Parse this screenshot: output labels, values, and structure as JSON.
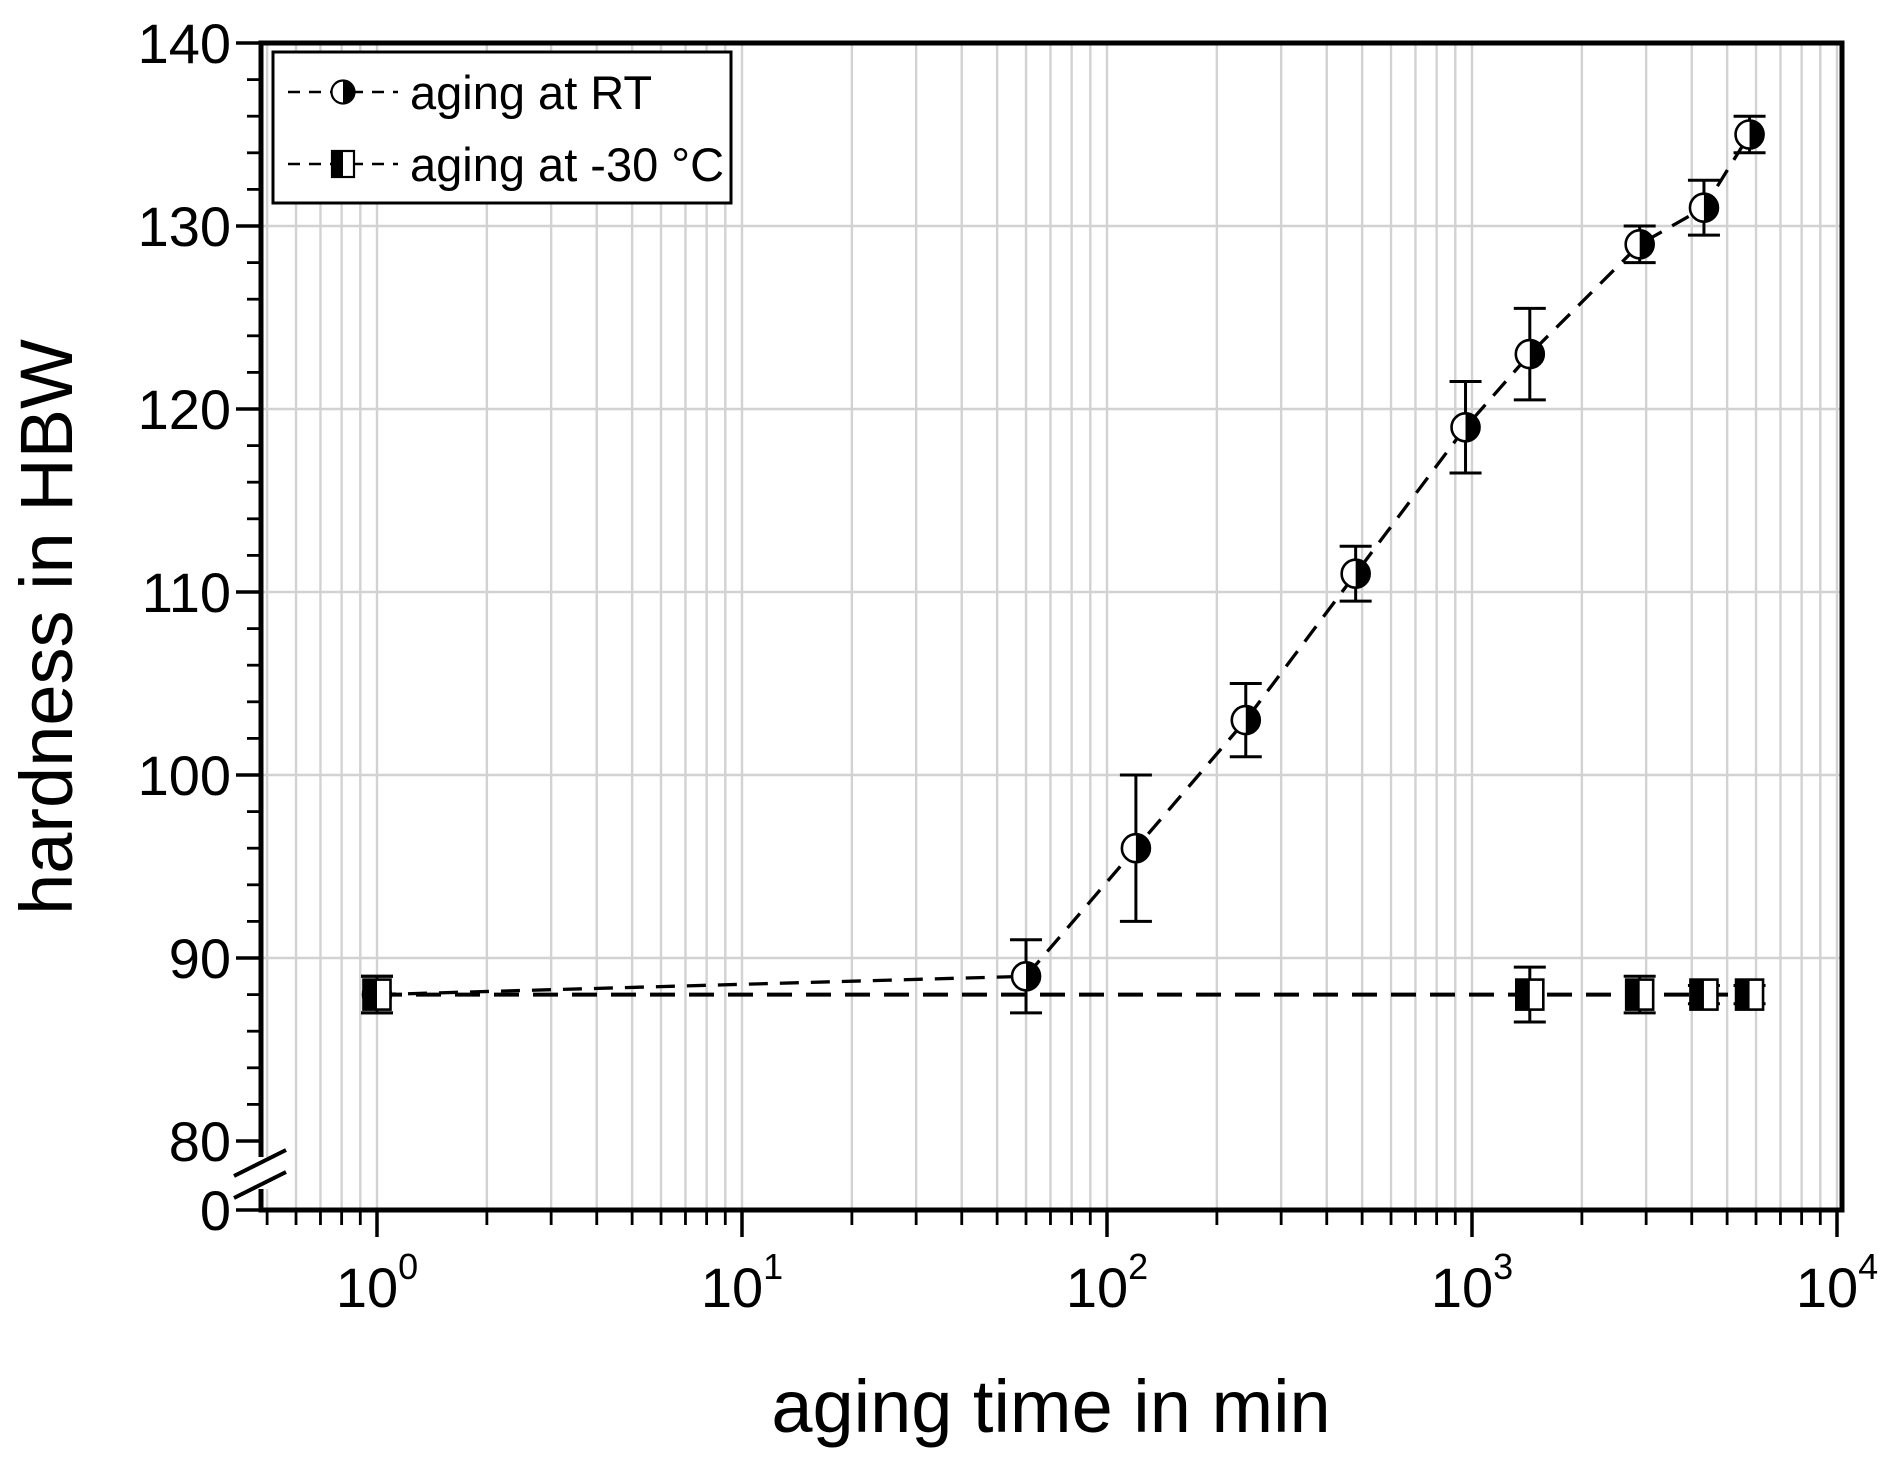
{
  "chart_data": {
    "type": "scatter",
    "title": "",
    "x_axis": {
      "label": "aging time in min",
      "scale": "log10",
      "tick_exponents": [
        0,
        1,
        2,
        3,
        4
      ],
      "tick_labels": [
        "10⁰",
        "10¹",
        "10²",
        "10³",
        "10⁴"
      ],
      "range": [
        0.48,
        10300
      ],
      "minor_ticks": "log 2-9 per decade",
      "gridlines": "vertical at every major and minor log tick"
    },
    "y_axis": {
      "label": "hardness in HBW",
      "scale": "linear with axis break",
      "major_ticks": [
        140,
        130,
        120,
        110,
        100,
        90,
        80
      ],
      "origin_label": "0",
      "minor_step": 2,
      "axis_break_between": [
        80,
        0
      ],
      "range_shown": [
        80,
        140
      ]
    },
    "grid": {
      "color": "#d2d2d2",
      "horizontal_at": [
        90,
        100,
        110,
        120,
        130
      ]
    },
    "legend": {
      "position": "top-left",
      "entries": [
        {
          "label": "aging at RT",
          "marker": "half-filled-circle"
        },
        {
          "label": "aging at -30 °C",
          "marker": "half-filled-square"
        }
      ]
    },
    "series": [
      {
        "name": "aging at RT",
        "marker": "half-filled-circle",
        "line": "dashed",
        "color": "#000000",
        "points": [
          {
            "x": 1,
            "y": 88,
            "err": 1.0
          },
          {
            "x": 60,
            "y": 89,
            "err": 2.0
          },
          {
            "x": 120,
            "y": 96,
            "err": 4.0
          },
          {
            "x": 240,
            "y": 103,
            "err": 2.0
          },
          {
            "x": 480,
            "y": 111,
            "err": 1.5
          },
          {
            "x": 960,
            "y": 119,
            "err": 2.5
          },
          {
            "x": 1440,
            "y": 123,
            "err": 2.5
          },
          {
            "x": 2880,
            "y": 129,
            "err": 1.0
          },
          {
            "x": 4320,
            "y": 131,
            "err": 1.5
          },
          {
            "x": 5760,
            "y": 135,
            "err": 1.0
          }
        ]
      },
      {
        "name": "aging at -30 °C",
        "marker": "half-filled-square",
        "line": "dashed",
        "color": "#000000",
        "points": [
          {
            "x": 1,
            "y": 88,
            "err": 1.0
          },
          {
            "x": 1440,
            "y": 88,
            "err": 1.5
          },
          {
            "x": 2880,
            "y": 88,
            "err": 1.0
          },
          {
            "x": 4320,
            "y": 88,
            "err": 0.5
          },
          {
            "x": 5760,
            "y": 88,
            "err": 0.5
          }
        ]
      }
    ]
  }
}
